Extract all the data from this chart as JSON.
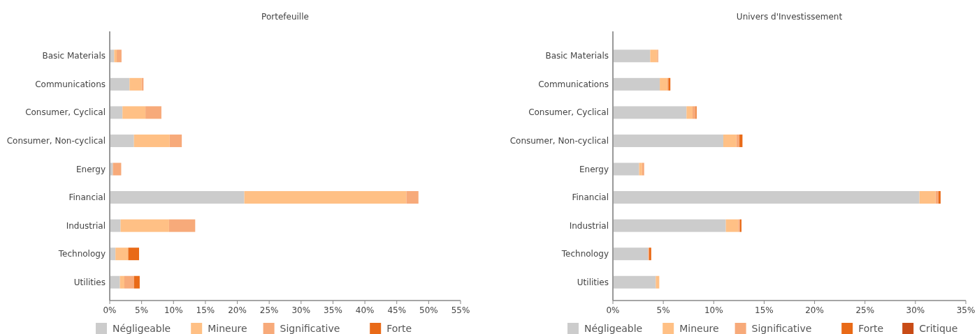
{
  "chart_data": [
    {
      "type": "bar",
      "orientation": "horizontal",
      "stacked": true,
      "title": "Portefeuille",
      "categories": [
        "Basic Materials",
        "Communications",
        "Consumer, Cyclical",
        "Consumer, Non-cyclical",
        "Energy",
        "Financial",
        "Industrial",
        "Technology",
        "Utilities"
      ],
      "series": [
        {
          "name": "Négligeable",
          "color": "#cccccc",
          "values": [
            0.7,
            3.1,
            2.0,
            3.8,
            0.5,
            21.1,
            1.7,
            0.9,
            1.6
          ]
        },
        {
          "name": "Mineure",
          "color": "#ffc085",
          "values": [
            0.4,
            1.9,
            3.6,
            5.6,
            0,
            25.4,
            7.6,
            2.0,
            0.7
          ]
        },
        {
          "name": "Significative",
          "color": "#f7aa7a",
          "values": [
            0.75,
            0.3,
            2.5,
            1.9,
            1.3,
            1.9,
            4.1,
            0,
            1.5
          ]
        },
        {
          "name": "Forte",
          "color": "#e96a17",
          "values": [
            0,
            0,
            0,
            0,
            0,
            0,
            0,
            1.7,
            0.9
          ]
        }
      ],
      "xlim": [
        0,
        55
      ],
      "xticks": [
        {
          "value": 0,
          "label": "0%"
        },
        {
          "value": 5,
          "label": "5%"
        },
        {
          "value": 10,
          "label": "10%"
        },
        {
          "value": 15,
          "label": "15%"
        },
        {
          "value": 20,
          "label": "20%"
        },
        {
          "value": 25,
          "label": "25%"
        },
        {
          "value": 30,
          "label": "30%"
        },
        {
          "value": 35,
          "label": "35%"
        },
        {
          "value": 40,
          "label": "40%"
        },
        {
          "value": 45,
          "label": "45%"
        },
        {
          "value": 50,
          "label": "50%"
        },
        {
          "value": 55,
          "label": "55%"
        }
      ],
      "grid": false,
      "legend": "bottom"
    },
    {
      "type": "bar",
      "orientation": "horizontal",
      "stacked": true,
      "title": "Univers d'Investissement",
      "categories": [
        "Basic Materials",
        "Communications",
        "Consumer, Cyclical",
        "Consumer, Non-cyclical",
        "Energy",
        "Financial",
        "Industrial",
        "Technology",
        "Utilities"
      ],
      "series": [
        {
          "name": "Négligeable",
          "color": "#cccccc",
          "values": [
            3.7,
            4.65,
            7.3,
            10.95,
            2.6,
            30.4,
            11.2,
            3.5,
            4.25
          ]
        },
        {
          "name": "Mineure",
          "color": "#ffc085",
          "values": [
            0.7,
            0.75,
            0.6,
            1.3,
            0.3,
            1.6,
            1.25,
            0,
            0.35
          ]
        },
        {
          "name": "Significative",
          "color": "#f7aa7a",
          "values": [
            0.1,
            0.1,
            0.3,
            0.3,
            0.2,
            0.3,
            0.15,
            0.1,
            0
          ]
        },
        {
          "name": "Forte",
          "color": "#e96a17",
          "values": [
            0,
            0.2,
            0.1,
            0.3,
            0,
            0.2,
            0.15,
            0.2,
            0
          ]
        },
        {
          "name": "Critique",
          "color": "#c84b16",
          "values": [
            0,
            0,
            0,
            0,
            0,
            0,
            0,
            0,
            0
          ]
        }
      ],
      "xlim": [
        0,
        35
      ],
      "xticks": [
        {
          "value": 0,
          "label": "0%"
        },
        {
          "value": 5,
          "label": "5%"
        },
        {
          "value": 10,
          "label": "10%"
        },
        {
          "value": 15,
          "label": "15%"
        },
        {
          "value": 20,
          "label": "20%"
        },
        {
          "value": 25,
          "label": "25%"
        },
        {
          "value": 30,
          "label": "30%"
        },
        {
          "value": 35,
          "label": "35%"
        }
      ],
      "grid": false,
      "legend": "bottom"
    }
  ]
}
